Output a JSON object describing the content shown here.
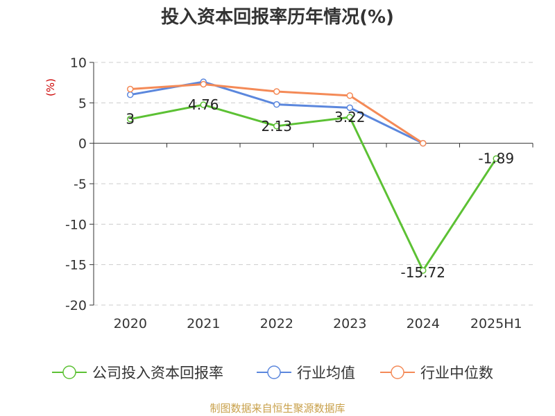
{
  "title": "投入资本回报率历年情况(%)",
  "source": "制图数据来自恒生聚源数据库",
  "colors": {
    "axis_unit": "#cc0000",
    "source": "#c8a04a",
    "grid": "#cccccc",
    "axis": "#333333",
    "label": "#333333"
  },
  "chart_data": {
    "type": "line",
    "ylabel": "(%)",
    "ylim": [
      -20,
      10
    ],
    "yticks": [
      10,
      5,
      0,
      -5,
      -10,
      -15,
      -20
    ],
    "grid": true,
    "legend_position": "bottom",
    "categories": [
      "2020",
      "2021",
      "2022",
      "2023",
      "2024",
      "2025H1"
    ],
    "series": [
      {
        "name": "公司投入资本回报率",
        "color": "#5cc134",
        "values": [
          3,
          4.76,
          2.13,
          3.22,
          -15.72,
          -1.89
        ],
        "labels": [
          "3",
          "4.76",
          "2.13",
          "3.22",
          "-15.72",
          "-1.89"
        ]
      },
      {
        "name": "行业均值",
        "color": "#5b87dd",
        "values": [
          6.0,
          7.6,
          4.8,
          4.4,
          0,
          null
        ]
      },
      {
        "name": "行业中位数",
        "color": "#f48a57",
        "values": [
          6.7,
          7.3,
          6.4,
          5.9,
          0,
          null
        ]
      }
    ]
  }
}
